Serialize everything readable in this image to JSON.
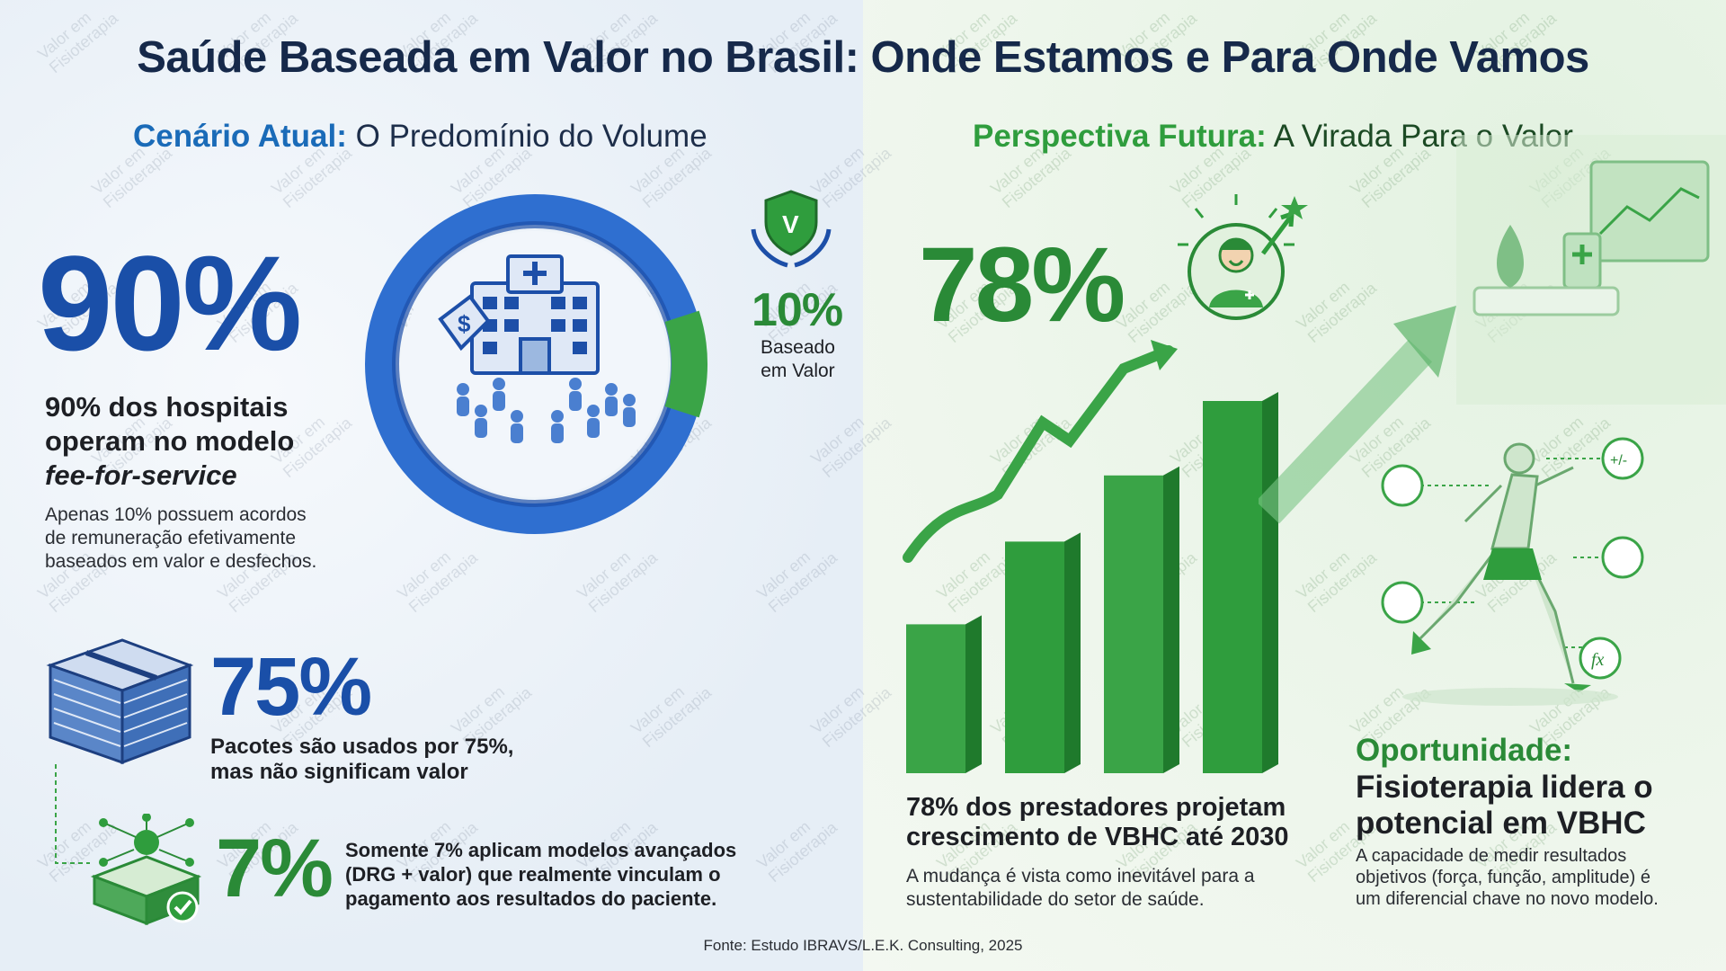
{
  "title": "Saúde Baseada em Valor no Brasil: Onde Estamos e Para Onde Vamos",
  "left": {
    "heading_accent": "Cenário Atual:",
    "heading_rest": "O Predomínio do Volume",
    "stat90": {
      "value": "90%",
      "line1": "90% dos hospitais",
      "line2": "operam no modelo",
      "line3": "fee-for-service",
      "note1": "Apenas 10% possuem acordos",
      "note2": "de remuneração efetivamente",
      "note3": "baseados em valor e desfechos."
    },
    "donut": {
      "value_pct": "10%",
      "label1": "Baseado",
      "label2": "em Valor",
      "fraction_value": 0.1
    },
    "stat75": {
      "value": "75%",
      "line1": "Pacotes são usados por 75%,",
      "line2": "mas não significam valor"
    },
    "stat7": {
      "value": "7%",
      "line1": "Somente 7% aplicam modelos avançados",
      "line2": "(DRG + valor) que realmente vinculam o",
      "line3": "pagamento aos resultados do paciente."
    }
  },
  "right": {
    "heading_accent": "Perspectiva Futura:",
    "heading_rest": "A Virada Para o Valor",
    "stat78": {
      "value": "78%",
      "line1": "78% dos prestadores projetam",
      "line2": "crescimento de VBHC até 2030",
      "note1": "A mudança é vista como inevitável para a",
      "note2": "sustentabilidade do setor de saúde."
    },
    "bars": [
      0.36,
      0.56,
      0.72,
      0.9
    ],
    "opportunity": {
      "label": "Oportunidade:",
      "line1": "Fisioterapia lidera o",
      "line2": "potencial em VBHC",
      "note1": "A capacidade de medir resultados",
      "note2": "objetivos (força, função, amplitude) é",
      "note3": "um diferencial chave no novo modelo."
    }
  },
  "watermark": {
    "line1": "Valor em",
    "line2": "Fisioterapia"
  },
  "source": "Fonte: Estudo IBRAVS/L.E.K. Consulting, 2025",
  "colors": {
    "blue": "#1a4fa8",
    "green": "#2a8a37",
    "navy": "#16294a",
    "accent_blue": "#1a6bb8"
  }
}
